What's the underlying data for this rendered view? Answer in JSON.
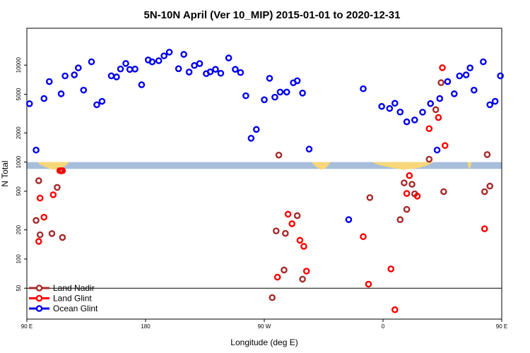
{
  "chart_data": {
    "type": "scatter",
    "title": "5N-10N April (Ver 10_MIP)   2015-01-01 to 2020-12-31",
    "xlabel": "Longitude (deg E)",
    "ylabel": "N Total",
    "xlim": [
      90,
      450
    ],
    "ylim": [
      24,
      24000
    ],
    "yscale": "log",
    "x_ticks": [
      {
        "value": 90,
        "label": "90 E"
      },
      {
        "value": 180,
        "label": "180"
      },
      {
        "value": 270,
        "label": "90 W"
      },
      {
        "value": 360,
        "label": "0"
      },
      {
        "value": 450,
        "label": "90 E"
      },
      {
        "value": 540,
        "label": "180"
      }
    ],
    "y_ticks": [
      {
        "value": 50,
        "label": "50"
      },
      {
        "value": 100,
        "label": "100"
      },
      {
        "value": 200,
        "label": "200"
      },
      {
        "value": 500,
        "label": "500"
      },
      {
        "value": 1000,
        "label": "1000"
      },
      {
        "value": 2000,
        "label": "2000"
      },
      {
        "value": 5000,
        "label": "5000"
      },
      {
        "value": 10000,
        "label": "10000"
      }
    ],
    "reference_line": 50,
    "land_band": {
      "low": 850,
      "high": 1000,
      "color": "#a7bedb",
      "land_color": "#f7d77a"
    },
    "legend_position": "bottom-left",
    "series": [
      {
        "name": "Land Nadir",
        "color": "#a52a2a",
        "points": [
          [
            99,
            642
          ],
          [
            97,
            250
          ],
          [
            100,
            178
          ],
          [
            109,
            183
          ],
          [
            113,
            548
          ],
          [
            116,
            812
          ],
          [
            117,
            167
          ],
          [
            281,
            1180
          ],
          [
            276,
            40
          ],
          [
            279,
            195
          ],
          [
            285,
            77
          ],
          [
            286,
            184
          ],
          [
            295,
            280
          ],
          [
            299,
            62
          ],
          [
            350,
            430
          ],
          [
            373,
            255
          ],
          [
            376,
            610
          ],
          [
            378,
            325
          ],
          [
            382,
            590
          ],
          [
            384,
            470
          ],
          [
            395,
            1070
          ],
          [
            400,
            3470
          ],
          [
            404,
            6590
          ],
          [
            406,
            495
          ],
          [
            437,
            495
          ],
          [
            439,
            1195
          ],
          [
            441,
            565
          ],
          [
            460,
            250
          ],
          [
            463,
            642
          ],
          [
            465,
            178
          ],
          [
            478,
            183
          ],
          [
            481,
            548
          ],
          [
            485,
            167
          ]
        ]
      },
      {
        "name": "Land Glint",
        "color": "#ff0000",
        "points": [
          [
            99,
            152
          ],
          [
            100,
            425
          ],
          [
            103,
            270
          ],
          [
            110,
            460
          ],
          [
            115,
            815
          ],
          [
            117,
            815
          ],
          [
            280,
            65
          ],
          [
            288,
            290
          ],
          [
            291,
            231
          ],
          [
            297,
            156
          ],
          [
            300,
            135
          ],
          [
            302,
            75
          ],
          [
            345,
            170
          ],
          [
            349,
            55
          ],
          [
            366,
            79
          ],
          [
            369,
            30
          ],
          [
            378,
            474
          ],
          [
            380,
            725
          ],
          [
            386,
            445
          ],
          [
            395,
            2210
          ],
          [
            402,
            2880
          ],
          [
            405,
            9400
          ],
          [
            407,
            1480
          ],
          [
            437,
            205
          ],
          [
            458,
            153
          ],
          [
            461,
            425
          ],
          [
            465,
            270
          ],
          [
            477,
            460
          ],
          [
            483,
            815
          ],
          [
            485,
            815
          ]
        ]
      },
      {
        "name": "Ocean Glint",
        "color": "#0000ee",
        "points": [
          [
            92,
            4000
          ],
          [
            97,
            1330
          ],
          [
            103,
            4520
          ],
          [
            107,
            6760
          ],
          [
            116,
            5060
          ],
          [
            119,
            7740
          ],
          [
            126,
            7930
          ],
          [
            129,
            9360
          ],
          [
            133,
            5520
          ],
          [
            139,
            10820
          ],
          [
            143,
            3900
          ],
          [
            147,
            4230
          ],
          [
            154,
            7750
          ],
          [
            158,
            7550
          ],
          [
            161,
            9120
          ],
          [
            165,
            10400
          ],
          [
            168,
            9020
          ],
          [
            172,
            9100
          ],
          [
            177,
            6270
          ],
          [
            182,
            11300
          ],
          [
            185,
            10800
          ],
          [
            190,
            11100
          ],
          [
            194,
            12450
          ],
          [
            198,
            13600
          ],
          [
            205,
            9180
          ],
          [
            209,
            12900
          ],
          [
            213,
            8480
          ],
          [
            217,
            9910
          ],
          [
            221,
            10370
          ],
          [
            226,
            8170
          ],
          [
            229,
            8520
          ],
          [
            233,
            9040
          ],
          [
            237,
            8240
          ],
          [
            243,
            11850
          ],
          [
            248,
            9040
          ],
          [
            252,
            8380
          ],
          [
            256,
            4830
          ],
          [
            260,
            1760
          ],
          [
            264,
            2170
          ],
          [
            270,
            4390
          ],
          [
            274,
            7310
          ],
          [
            278,
            4670
          ],
          [
            282,
            5270
          ],
          [
            287,
            5270
          ],
          [
            292,
            6570
          ],
          [
            295,
            6890
          ],
          [
            299,
            5150
          ],
          [
            304,
            1360
          ],
          [
            334,
            255
          ],
          [
            345,
            5700
          ],
          [
            359,
            3750
          ],
          [
            365,
            3570
          ],
          [
            369,
            4040
          ],
          [
            373,
            3280
          ],
          [
            378,
            2600
          ],
          [
            384,
            2720
          ],
          [
            390,
            3270
          ],
          [
            396,
            4010
          ],
          [
            401,
            1330
          ],
          [
            403,
            4520
          ],
          [
            409,
            6760
          ],
          [
            414,
            5060
          ],
          [
            418,
            7740
          ],
          [
            423,
            7930
          ],
          [
            426,
            9360
          ],
          [
            429,
            5520
          ],
          [
            436,
            10820
          ],
          [
            441,
            3900
          ],
          [
            445,
            4230
          ],
          [
            449,
            7750
          ],
          [
            454,
            7550
          ],
          [
            458,
            9120
          ],
          [
            461,
            10400
          ],
          [
            464,
            9020
          ]
        ]
      }
    ]
  }
}
